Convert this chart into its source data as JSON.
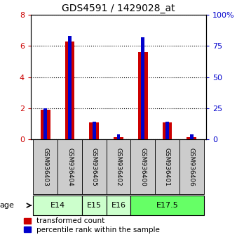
{
  "title": "GDS4591 / 1429028_at",
  "samples": [
    "GSM936403",
    "GSM936404",
    "GSM936405",
    "GSM936402",
    "GSM936400",
    "GSM936401",
    "GSM936406"
  ],
  "transformed_count": [
    1.9,
    6.3,
    1.1,
    0.15,
    5.6,
    1.1,
    0.15
  ],
  "percentile_rank": [
    25,
    83,
    14,
    4,
    82,
    14,
    4
  ],
  "age_groups": [
    {
      "label": "E14",
      "start": 0,
      "end": 1,
      "color": "#ccffcc"
    },
    {
      "label": "E15",
      "start": 2,
      "end": 2,
      "color": "#ccffcc"
    },
    {
      "label": "E16",
      "start": 3,
      "end": 3,
      "color": "#ccffcc"
    },
    {
      "label": "E17.5",
      "start": 4,
      "end": 6,
      "color": "#66ff66"
    }
  ],
  "ylim_left": [
    0,
    8
  ],
  "ylim_right": [
    0,
    100
  ],
  "yticks_left": [
    0,
    2,
    4,
    6,
    8
  ],
  "yticks_right": [
    0,
    25,
    50,
    75,
    100
  ],
  "bar_color_red": "#cc0000",
  "bar_color_blue": "#0000cc",
  "bar_width": 0.4,
  "bg_color": "#ffffff",
  "plot_bg": "#ffffff",
  "sample_box_color": "#cccccc",
  "left_tick_color": "#cc0000",
  "right_tick_color": "#0000cc",
  "legend_red_label": "transformed count",
  "legend_blue_label": "percentile rank within the sample"
}
